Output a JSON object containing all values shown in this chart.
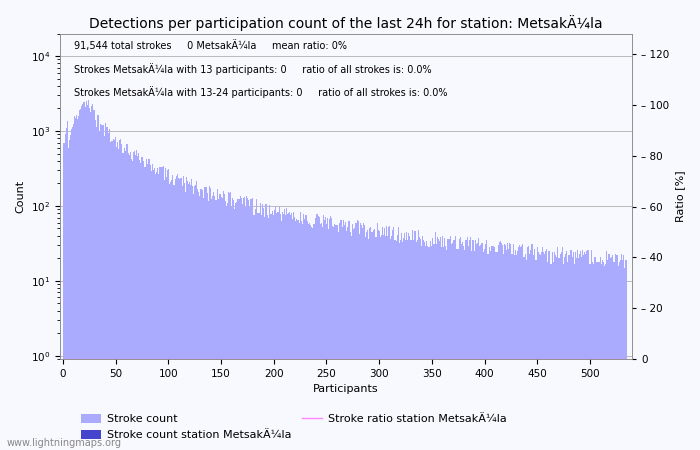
{
  "title": "Detections per participation count of the last 24h for station: MetsakÄ¼la",
  "xlabel": "Participants",
  "ylabel_left": "Count",
  "ylabel_right": "Ratio [%]",
  "annotation_line1": "91,544 total strokes     0 MetsakÄ¼la     mean ratio: 0%",
  "annotation_line2": "Strokes MetsakÄ¼la with 13 participants: 0     ratio of all strokes is: 0.0%",
  "annotation_line3": "Strokes MetsakÄ¼la with 13-24 participants: 0     ratio of all strokes is: 0.0%",
  "legend_label_stroke_count": "Stroke count",
  "legend_label_station": "Stroke count station MetsakÄ¼la",
  "legend_label_ratio": "Stroke ratio station MetsakÄ¼la",
  "watermark": "www.lightningmaps.org",
  "bar_color": "#aaaaff",
  "bar_color_station": "#4444cc",
  "line_color": "#ff88ff",
  "background_color": "#f8f8ff",
  "grid_color": "#bbbbbb",
  "title_fontsize": 10,
  "annotation_fontsize": 7,
  "axis_fontsize": 8,
  "max_participants": 535,
  "ylim_left": [
    0.9,
    20000
  ],
  "ylim_ratio": [
    0,
    128
  ],
  "yticks_ratio": [
    0,
    20,
    40,
    60,
    80,
    100,
    120
  ],
  "xticks": [
    0,
    50,
    100,
    150,
    200,
    250,
    300,
    350,
    400,
    450,
    500
  ]
}
